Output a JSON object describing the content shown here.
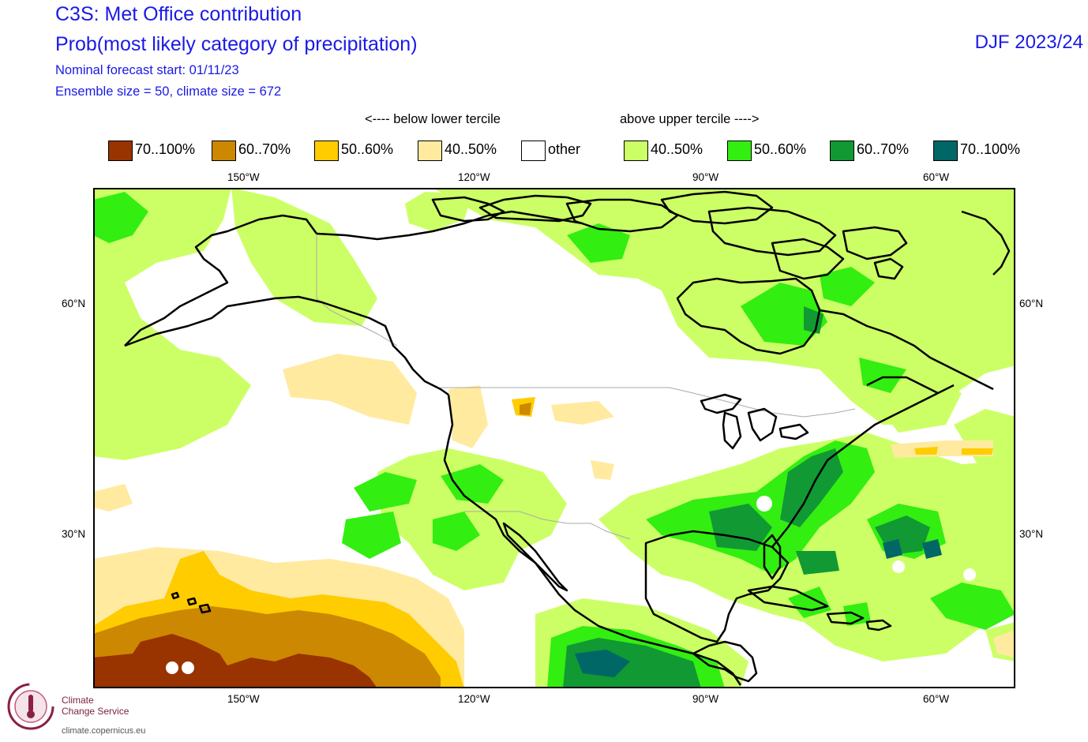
{
  "header": {
    "title": "C3S: Met Office contribution",
    "subtitle": "Prob(most likely category of precipitation)",
    "forecast_start": "Nominal forecast start: 01/11/23",
    "ensemble_info": "Ensemble size = 50, climate size = 672",
    "season": "DJF 2023/24"
  },
  "legend": {
    "below_label": "<---- below lower tercile",
    "above_label": "above upper tercile ---->",
    "items": [
      {
        "label": "70..100%",
        "color": "#993300"
      },
      {
        "label": "60..70%",
        "color": "#cc8800"
      },
      {
        "label": "50..60%",
        "color": "#ffcc00"
      },
      {
        "label": "40..50%",
        "color": "#ffeaa0"
      },
      {
        "label": "other",
        "color": "#ffffff"
      },
      {
        "label": "40..50%",
        "color": "#ccff66"
      },
      {
        "label": "50..60%",
        "color": "#33ee11"
      },
      {
        "label": "60..70%",
        "color": "#119933"
      },
      {
        "label": "70..100%",
        "color": "#006666"
      }
    ]
  },
  "axes": {
    "lon_labels": [
      "150°W",
      "120°W",
      "90°W",
      "60°W"
    ],
    "lat_labels": [
      "60°N",
      "30°N"
    ]
  },
  "footer": {
    "logo_line1": "Climate",
    "logo_line2": "Change Service",
    "logo_url": "climate.copernicus.eu"
  }
}
